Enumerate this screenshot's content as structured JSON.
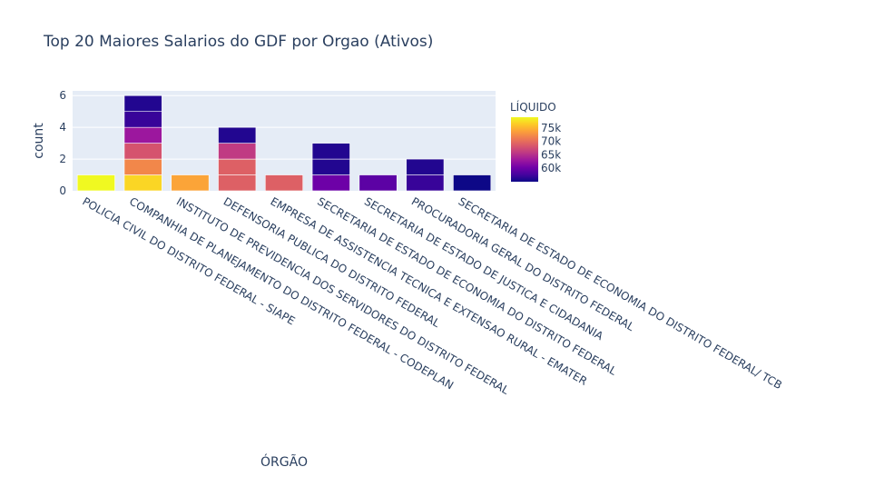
{
  "chart_data": {
    "type": "bar",
    "title": "Top 20 Maiores Salarios do GDF por Orgao (Ativos)",
    "xlabel": "ÓRGÃO",
    "ylabel": "count",
    "ylim": [
      0,
      6.3
    ],
    "yticks": [
      0,
      2,
      4,
      6
    ],
    "categories": [
      "POLICIA CIVIL DO DISTRITO FEDERAL - SIAPE",
      "COMPANHIA DE PLANEJAMENTO DO DISTRITO FEDERAL - CODEPLAN",
      "INSTITUTO DE PREVIDENCIA DOS SERVIDORES DO DISTRITO FEDERAL",
      "DEFENSORIA PUBLICA DO DISTRITO FEDERAL",
      "EMPRESA DE ASSISTENCIA TECNICA E EXTENSAO RURAL - EMATER",
      "SECRETARIA DE ESTADO DE ECONOMIA DO DISTRITO FEDERAL",
      "SECRETARIA DE ESTADO DE JUSTICA E CIDADANIA",
      "PROCURADORIA GERAL DO DISTRITO FEDERAL",
      "SECRETARIA DE ESTADO DE ECONOMIA DO DISTRITO FEDERAL/ TCB"
    ],
    "segment_liquido": [
      [
        79000
      ],
      [
        77000,
        72000,
        68000,
        63000,
        57000,
        56000
      ],
      [
        74000
      ],
      [
        69000,
        69000,
        66000,
        56000
      ],
      [
        69000
      ],
      [
        60000,
        56000,
        56000
      ],
      [
        59000
      ],
      [
        57000,
        56000
      ],
      [
        55000
      ]
    ],
    "colorbar": {
      "title": "LÍQUIDO",
      "range": [
        55000,
        79000
      ],
      "ticks": [
        60000,
        65000,
        70000,
        75000
      ],
      "tick_labels": [
        "60k",
        "65k",
        "70k",
        "75k"
      ],
      "colorscale": [
        "#0d0887",
        "#46039f",
        "#7201a8",
        "#9c179e",
        "#bd3786",
        "#d8576b",
        "#ed7953",
        "#fb9f3a",
        "#fdca26",
        "#f0f921"
      ]
    },
    "grid": true,
    "plot_bgcolor": "#e5ecf6"
  }
}
